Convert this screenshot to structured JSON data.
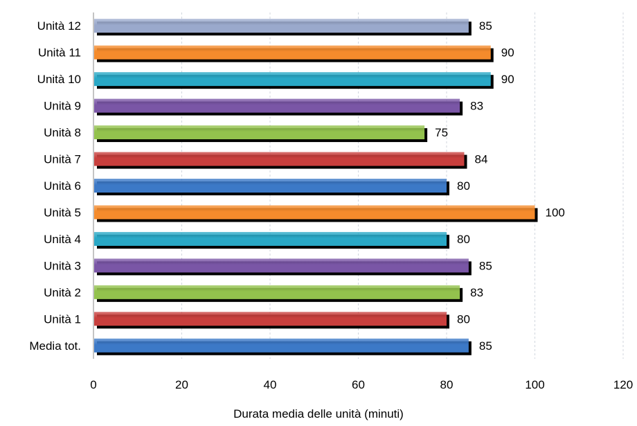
{
  "chart_data": {
    "type": "bar",
    "orientation": "horizontal",
    "xlabel": "Durata media delle unità (minuti)",
    "xlim": [
      0,
      120
    ],
    "xticks": [
      0,
      20,
      40,
      60,
      80,
      100,
      120
    ],
    "grid": "vertical dashed",
    "bars": [
      {
        "label": "Unità 12",
        "value": 85,
        "color": "#9aa9cc"
      },
      {
        "label": "Unità 11",
        "value": 90,
        "color": "#f58b2c"
      },
      {
        "label": "Unità 10",
        "value": 90,
        "color": "#29a8c6"
      },
      {
        "label": "Unità 9",
        "value": 83,
        "color": "#7a56a6"
      },
      {
        "label": "Unità 8",
        "value": 75,
        "color": "#93c24d"
      },
      {
        "label": "Unità 7",
        "value": 84,
        "color": "#c83f3d"
      },
      {
        "label": "Unità 6",
        "value": 80,
        "color": "#3c79c7"
      },
      {
        "label": "Unità 5",
        "value": 100,
        "color": "#f58b2c"
      },
      {
        "label": "Unità 4",
        "value": 80,
        "color": "#29a8c6"
      },
      {
        "label": "Unità 3",
        "value": 85,
        "color": "#7a56a6"
      },
      {
        "label": "Unità 2",
        "value": 83,
        "color": "#93c24d"
      },
      {
        "label": "Unità 1",
        "value": 80,
        "color": "#c83f3d"
      },
      {
        "label": "Media tot.",
        "value": 85,
        "color": "#3c79c7"
      }
    ]
  }
}
